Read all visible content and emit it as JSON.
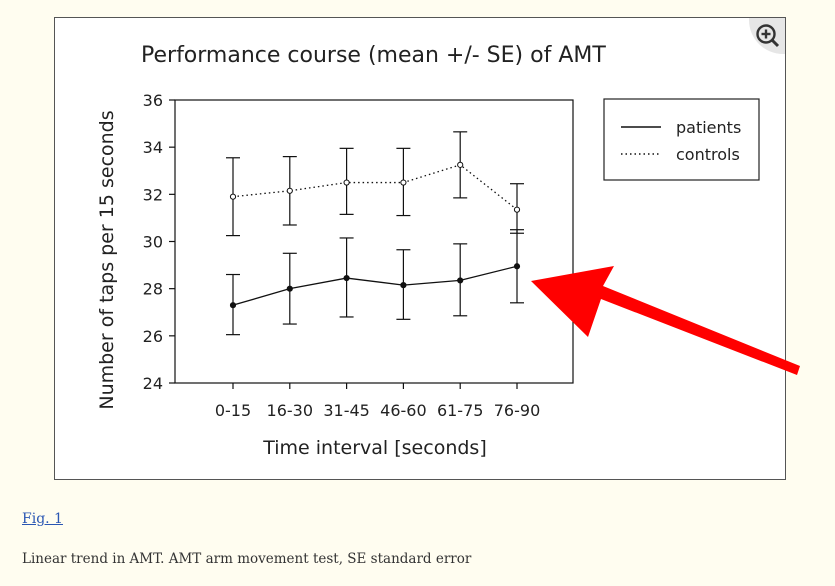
{
  "figure": {
    "link_label": "Fig. 1",
    "caption": "Linear trend in AMT. AMT arm movement test, SE standard error",
    "zoom_icon": "zoom-in-icon"
  },
  "annotation": {
    "arrow_color": "#ff0000",
    "arrow_icon": "red-arrow-icon"
  },
  "chart_data": {
    "type": "line",
    "title": "Performance course (mean +/- SE) of AMT",
    "xlabel": "Time interval [seconds]",
    "ylabel": "Number of taps per 15 seconds",
    "categories": [
      "0-15",
      "16-30",
      "31-45",
      "46-60",
      "61-75",
      "76-90"
    ],
    "ylim": [
      24,
      36
    ],
    "yticks": [
      "24",
      "26",
      "28",
      "30",
      "32",
      "34",
      "36"
    ],
    "grid": false,
    "legend_placement": "top-right",
    "series": [
      {
        "name": "patients",
        "style": "solid",
        "marker": "filled",
        "values": [
          27.3,
          28.0,
          28.45,
          28.15,
          28.35,
          28.95
        ],
        "err_low": [
          26.05,
          26.5,
          26.8,
          26.7,
          26.85,
          27.4
        ],
        "err_high": [
          28.6,
          29.5,
          30.15,
          29.65,
          29.9,
          30.5
        ]
      },
      {
        "name": "controls",
        "style": "dotted",
        "marker": "open",
        "values": [
          31.9,
          32.15,
          32.5,
          32.5,
          33.25,
          31.35
        ],
        "err_low": [
          30.25,
          30.7,
          31.15,
          31.1,
          31.85,
          30.35
        ],
        "err_high": [
          33.55,
          33.6,
          33.95,
          33.95,
          34.65,
          32.45
        ]
      }
    ]
  }
}
